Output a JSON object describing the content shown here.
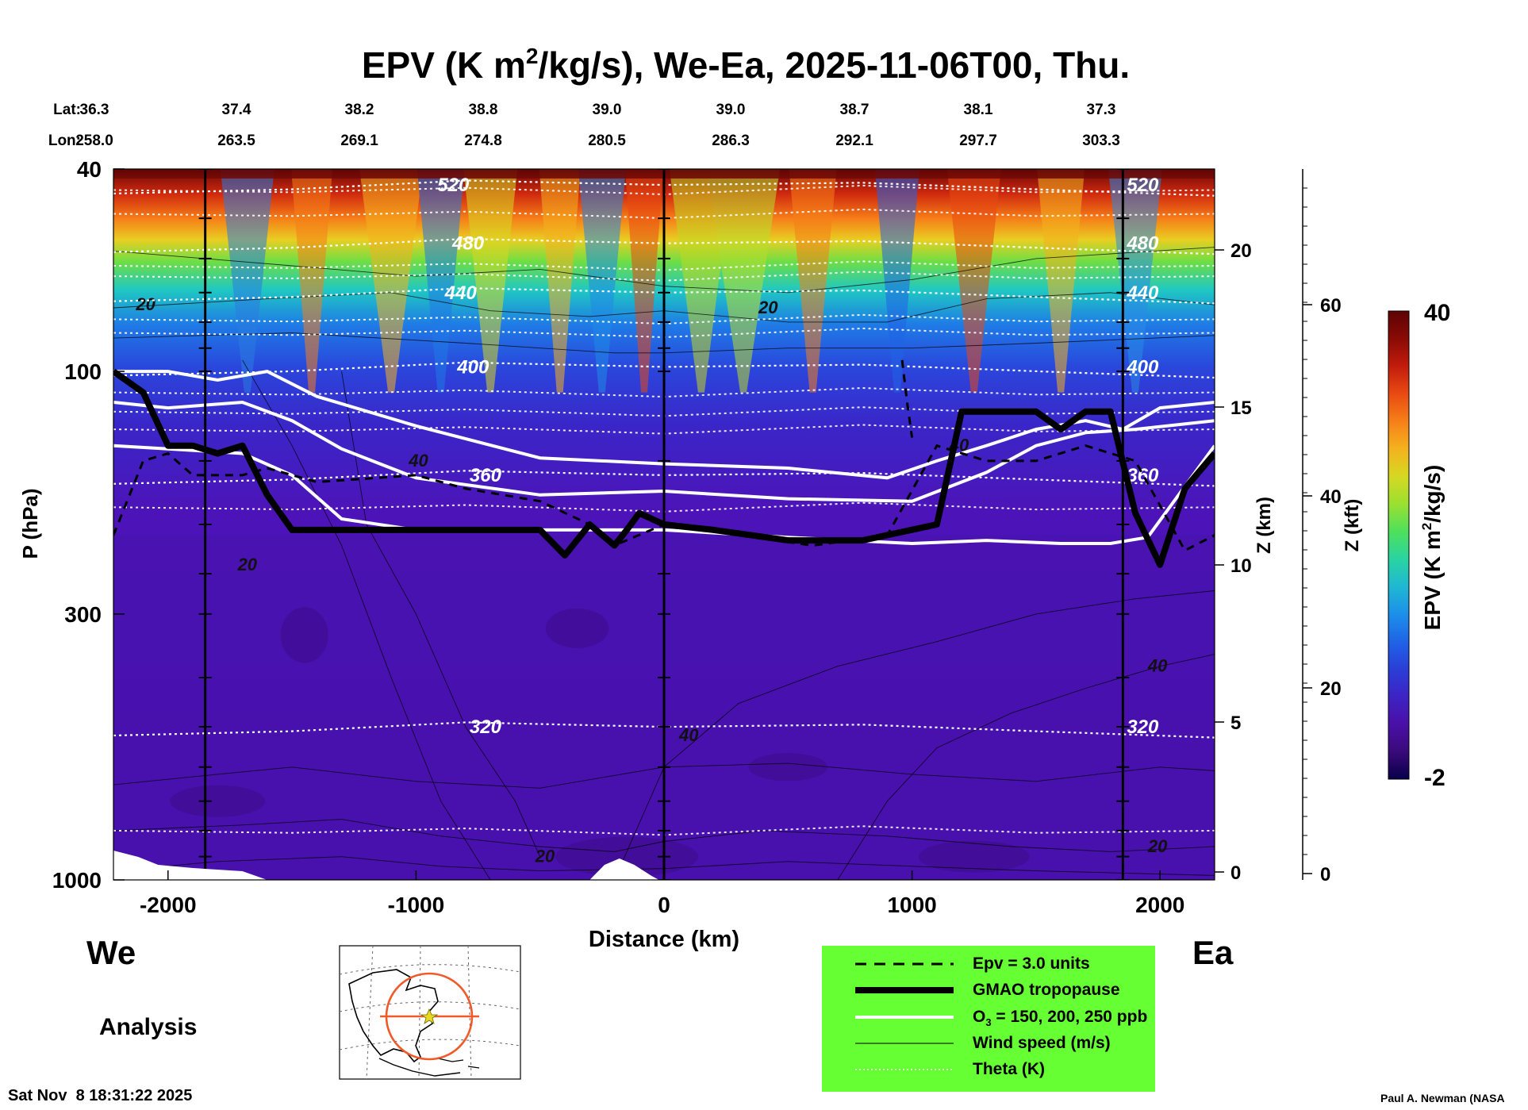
{
  "chart_data": {
    "type": "heatmap",
    "title": {
      "prefix": "EPV (K m",
      "sup": "2",
      "suffix": "/kg/s), We-Ea, 2025-11-06T00, Thu."
    },
    "lat_label": "Lat:",
    "lon_label": "Lon:",
    "lat_values": [
      "36.3",
      "37.4",
      "38.2",
      "38.8",
      "39.0",
      "39.0",
      "38.7",
      "38.1",
      "37.3"
    ],
    "lon_values": [
      "258.0",
      "263.5",
      "269.1",
      "274.8",
      "280.5",
      "286.3",
      "292.1",
      "297.7",
      "303.3"
    ],
    "xlabel": "Distance (km)",
    "xlim": [
      -2220,
      2220
    ],
    "xticks": [
      "-2000",
      "-1000",
      "0",
      "1000",
      "2000"
    ],
    "xtick_values": [
      -2000,
      -1000,
      0,
      1000,
      2000
    ],
    "ylabel": "P (hPa)",
    "ylim": [
      1000,
      40
    ],
    "yscale": "log",
    "yticks": [
      "40",
      "100",
      "300",
      "1000"
    ],
    "ytick_values": [
      40,
      100,
      300,
      1000
    ],
    "z_km_label": "Z (km)",
    "z_km_ticks": [
      "0",
      "5",
      "10",
      "15",
      "20"
    ],
    "z_kft_label": "Z (kft)",
    "z_kft_ticks": [
      "0",
      "20",
      "40",
      "60"
    ],
    "vertical_section_lines_km": [
      -1850,
      0,
      1850
    ],
    "colorbar": {
      "label_prefix": "EPV (K m",
      "label_sup": "2",
      "label_suffix": "/kg/s)",
      "max": "40",
      "min": "-2",
      "colors": [
        "#08004a",
        "#3a0a7a",
        "#4a10a8",
        "#3d23c4",
        "#2a3ed8",
        "#1f64e6",
        "#1c90ea",
        "#1fb8d2",
        "#2ad4a0",
        "#4ee05c",
        "#9be030",
        "#d6d822",
        "#f4b21e",
        "#f67f18",
        "#e84a12",
        "#c21c0c",
        "#8a0a06",
        "#5c0404"
      ]
    },
    "theta_contours": [
      {
        "label": "320",
        "pressure_hpa": 500
      },
      {
        "label": "360",
        "pressure_hpa": 160
      },
      {
        "label": "400",
        "pressure_hpa": 98
      },
      {
        "label": "440",
        "pressure_hpa": 70
      },
      {
        "label": "480",
        "pressure_hpa": 56
      },
      {
        "label": "520",
        "pressure_hpa": 43
      }
    ],
    "wind_labels": [
      "20",
      "20",
      "20",
      "40",
      "40",
      "40",
      "40",
      "20",
      "20"
    ],
    "tropopause_line": {
      "x_km": [
        -2220,
        -2100,
        -2000,
        -1900,
        -1800,
        -1700,
        -1600,
        -1500,
        -1400,
        -1000,
        -500,
        -400,
        -300,
        -200,
        -150,
        -100,
        0,
        200,
        500,
        800,
        1100,
        1200,
        1300,
        1500,
        1600,
        1700,
        1800,
        1900,
        2000,
        2100,
        2220
      ],
      "p_hpa": [
        100,
        110,
        140,
        140,
        145,
        140,
        175,
        205,
        205,
        205,
        205,
        230,
        200,
        220,
        205,
        190,
        200,
        205,
        215,
        215,
        200,
        120,
        120,
        120,
        130,
        120,
        120,
        190,
        240,
        170,
        145
      ]
    },
    "epv_dashed_line": {
      "x_km": [
        -2220,
        -2100,
        -2000,
        -1900,
        -1700,
        -1600,
        -1400,
        -1000,
        -800,
        -500,
        -300,
        -200,
        0,
        300,
        600,
        900,
        1100,
        1300,
        1500,
        1700,
        1900,
        2100,
        2220
      ],
      "p_hpa": [
        210,
        150,
        145,
        160,
        160,
        155,
        165,
        160,
        170,
        180,
        200,
        220,
        200,
        210,
        220,
        210,
        140,
        150,
        150,
        140,
        150,
        225,
        210
      ]
    },
    "ozone_lines": [
      {
        "label": "150 ppb",
        "x_km": [
          -2220,
          -2000,
          -1800,
          -1600,
          -1400,
          -1000,
          -500,
          0,
          500,
          900,
          1100,
          1300,
          1500,
          1700,
          1850,
          2000,
          2220
        ],
        "p_hpa": [
          100,
          100,
          104,
          100,
          112,
          128,
          148,
          152,
          155,
          162,
          150,
          140,
          130,
          125,
          130,
          118,
          115
        ]
      },
      {
        "label": "200 ppb",
        "x_km": [
          -2220,
          -2000,
          -1700,
          -1500,
          -1300,
          -1000,
          -500,
          0,
          500,
          1000,
          1300,
          1500,
          1700,
          1900,
          2220
        ],
        "p_hpa": [
          115,
          118,
          115,
          125,
          142,
          162,
          175,
          172,
          178,
          180,
          158,
          140,
          132,
          130,
          125
        ]
      },
      {
        "label": "250 ppb",
        "x_km": [
          -2220,
          -2000,
          -1700,
          -1500,
          -1300,
          -1000,
          -500,
          0,
          500,
          1000,
          1300,
          1600,
          1800,
          1950,
          2220
        ],
        "p_hpa": [
          140,
          142,
          145,
          160,
          195,
          205,
          205,
          205,
          212,
          218,
          215,
          218,
          218,
          212,
          140
        ]
      }
    ],
    "legend": [
      {
        "label": "Epv = 3.0 units",
        "style": "dashed-black"
      },
      {
        "label": "GMAO tropopause",
        "style": "thick-black"
      },
      {
        "label": "O",
        "sub": "3",
        "label_rest": " = 150, 200, 250 ppb",
        "style": "white"
      },
      {
        "label": "Wind speed (m/s)",
        "style": "thin-black"
      },
      {
        "label": "Theta (K)",
        "style": "dotted-white"
      }
    ],
    "legend_color": "#66ff33"
  },
  "page": {
    "west_label": "We",
    "east_label": "Ea",
    "analysis_label": "Analysis",
    "timestamp": "Sat Nov  8 18:31:22 2025",
    "credit": "Paul A. Newman (NASA"
  }
}
